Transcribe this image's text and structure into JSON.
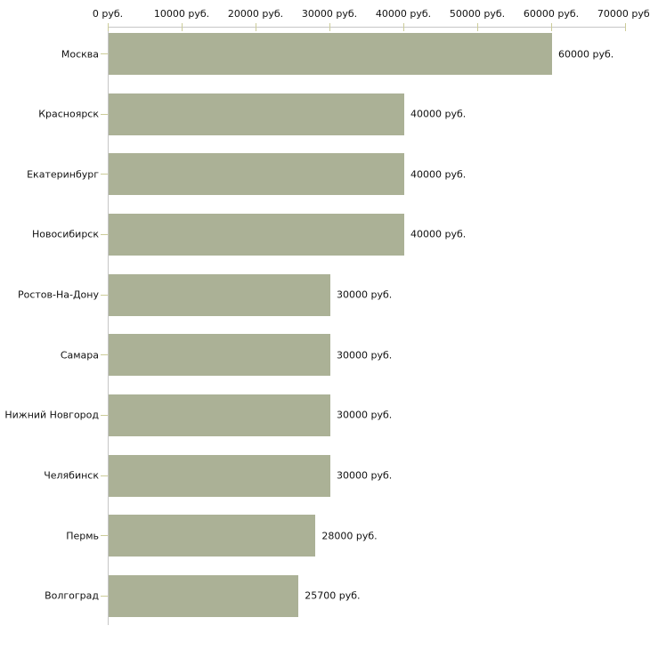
{
  "chart_data": {
    "type": "bar",
    "orientation": "horizontal",
    "title": "",
    "xlabel": "",
    "ylabel": "",
    "categories": [
      "Москва",
      "Красноярск",
      "Екатеринбург",
      "Новосибирск",
      "Ростов-На-Дону",
      "Самара",
      "Нижний Новгород",
      "Челябинск",
      "Пермь",
      "Волгоград"
    ],
    "values": [
      60000,
      40000,
      40000,
      40000,
      30000,
      30000,
      30000,
      30000,
      28000,
      25700
    ],
    "value_labels": [
      "60000 руб.",
      "40000 руб.",
      "40000 руб.",
      "40000 руб.",
      "30000 руб.",
      "30000 руб.",
      "30000 руб.",
      "30000 руб.",
      "28000 руб.",
      "25700 руб."
    ],
    "xlim": [
      0,
      70000
    ],
    "x_ticks": [
      {
        "value": 0,
        "label": "0 руб."
      },
      {
        "value": 10000,
        "label": "10000 руб."
      },
      {
        "value": 20000,
        "label": "20000 руб."
      },
      {
        "value": 30000,
        "label": "30000 руб."
      },
      {
        "value": 40000,
        "label": "40000 руб."
      },
      {
        "value": 50000,
        "label": "50000 руб."
      },
      {
        "value": 60000,
        "label": "60000 руб."
      },
      {
        "value": 70000,
        "label": "70000 руб."
      }
    ],
    "unit_suffix": " руб.",
    "grid": false,
    "legend_position": "none",
    "axis_position": "top-left",
    "colors": {
      "bar": "#abb196",
      "axis_line": "#c6c6c6",
      "tick": "#cccc99",
      "text": "#111111",
      "background": "#ffffff"
    }
  }
}
